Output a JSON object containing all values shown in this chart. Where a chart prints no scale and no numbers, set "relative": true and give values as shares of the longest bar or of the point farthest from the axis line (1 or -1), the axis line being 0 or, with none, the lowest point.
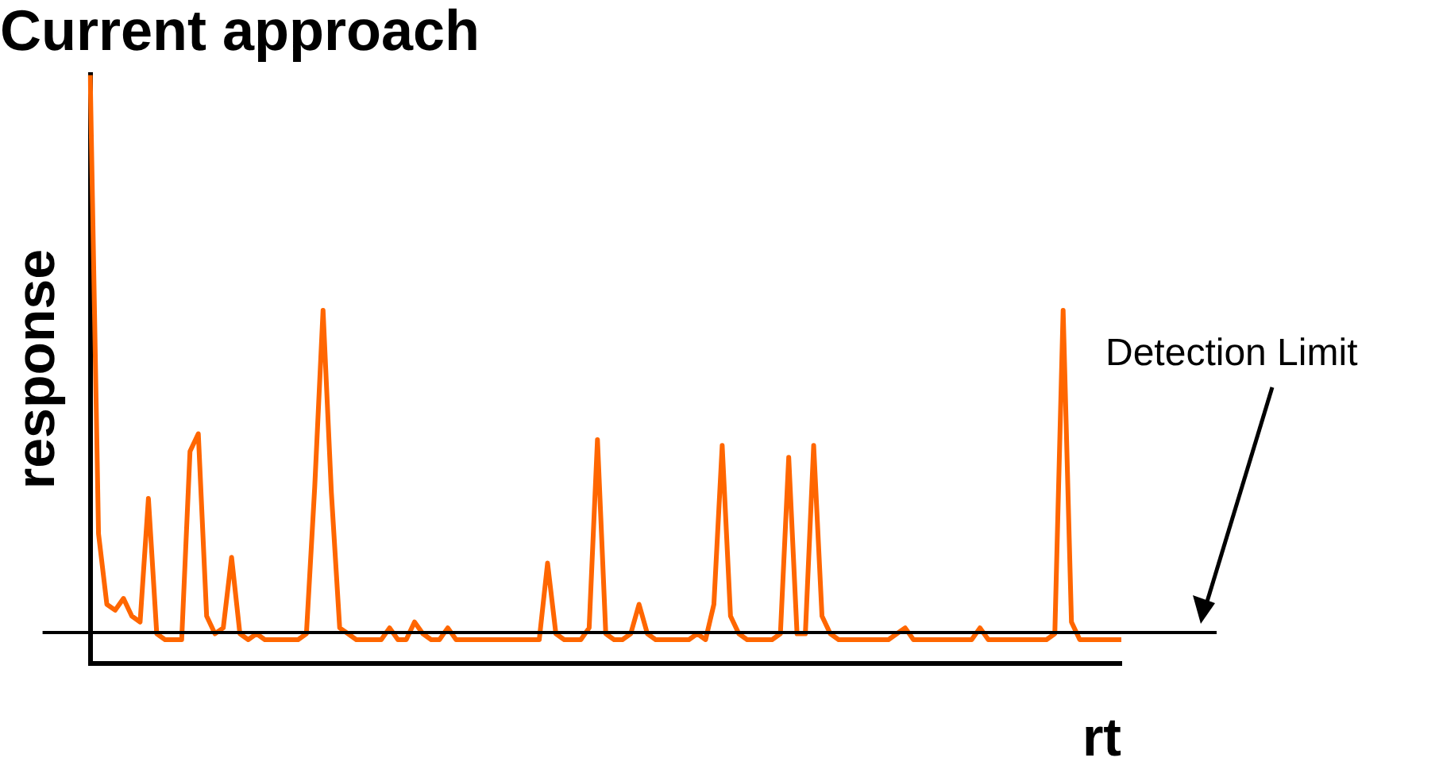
{
  "chart_data": {
    "type": "line",
    "title": "Current approach",
    "xlabel": "rt",
    "ylabel": "response",
    "relative": true,
    "marker": "none",
    "categories": [
      null,
      null,
      null,
      null,
      null,
      null,
      null,
      null,
      null,
      null,
      null,
      null,
      null,
      null,
      null,
      null,
      null,
      null,
      null,
      null,
      null,
      null,
      null,
      null,
      null,
      null,
      null,
      null,
      null,
      null,
      null,
      null,
      null,
      null,
      null,
      null,
      null,
      null,
      null,
      null,
      null,
      null,
      null,
      null,
      null,
      null,
      null,
      null,
      null,
      null,
      null,
      null,
      null,
      null,
      null,
      null,
      null,
      null,
      null,
      null,
      null,
      null,
      null,
      null,
      null,
      null,
      null,
      null,
      null,
      null,
      null,
      null,
      null,
      null,
      null,
      null,
      null,
      null,
      null,
      null,
      null,
      null,
      null,
      null,
      null,
      null,
      null,
      null,
      null,
      null,
      null,
      null,
      null,
      null,
      null,
      null,
      null,
      null,
      null,
      null,
      null,
      null,
      null,
      null,
      null,
      null,
      null,
      null,
      null,
      null,
      null,
      null,
      null,
      null,
      null,
      null,
      null,
      null,
      null,
      null,
      null,
      null,
      null,
      null,
      null
    ],
    "series": [
      {
        "color": "#ff6600",
        "values": [
          1.0,
          0.22,
          0.1,
          0.09,
          0.11,
          0.08,
          0.07,
          0.28,
          0.05,
          0.04,
          0.04,
          0.04,
          0.36,
          0.39,
          0.08,
          0.05,
          0.06,
          0.18,
          0.05,
          0.04,
          0.05,
          0.04,
          0.04,
          0.04,
          0.04,
          0.04,
          0.05,
          0.3,
          0.6,
          0.29,
          0.06,
          0.05,
          0.04,
          0.04,
          0.04,
          0.04,
          0.06,
          0.04,
          0.04,
          0.07,
          0.05,
          0.04,
          0.04,
          0.06,
          0.04,
          0.04,
          0.04,
          0.04,
          0.04,
          0.04,
          0.04,
          0.04,
          0.04,
          0.04,
          0.04,
          0.17,
          0.05,
          0.04,
          0.04,
          0.04,
          0.06,
          0.38,
          0.05,
          0.04,
          0.04,
          0.05,
          0.1,
          0.05,
          0.04,
          0.04,
          0.04,
          0.04,
          0.04,
          0.05,
          0.04,
          0.1,
          0.37,
          0.08,
          0.05,
          0.04,
          0.04,
          0.04,
          0.04,
          0.05,
          0.35,
          0.05,
          0.05,
          0.37,
          0.08,
          0.05,
          0.04,
          0.04,
          0.04,
          0.04,
          0.04,
          0.04,
          0.04,
          0.05,
          0.06,
          0.04,
          0.04,
          0.04,
          0.04,
          0.04,
          0.04,
          0.04,
          0.04,
          0.06,
          0.04,
          0.04,
          0.04,
          0.04,
          0.04,
          0.04,
          0.04,
          0.04,
          0.05,
          0.6,
          0.07,
          0.04,
          0.04,
          0.04,
          0.04,
          0.04,
          0.04
        ]
      }
    ],
    "ref_lines": [
      {
        "axis": "y",
        "value": 0.052,
        "label": "Detection Limit",
        "color": "#000000"
      }
    ]
  }
}
